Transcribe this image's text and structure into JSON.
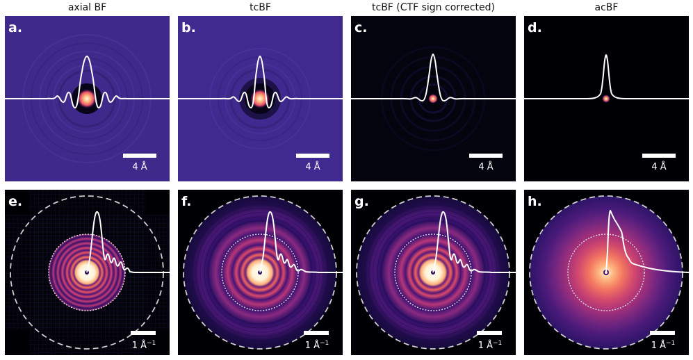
{
  "columns": [
    {
      "title": "axial BF"
    },
    {
      "title": "tcBF"
    },
    {
      "title": "tcBF (CTF sign corrected)"
    },
    {
      "title": "acBF"
    }
  ],
  "panels": {
    "a": {
      "letter": "a.",
      "scale_text": "4 Å",
      "background": "#3f2a8c"
    },
    "b": {
      "letter": "b.",
      "scale_text": "4 Å",
      "background": "#402a90"
    },
    "c": {
      "letter": "c.",
      "scale_text": "4 Å",
      "background": "#04040e"
    },
    "d": {
      "letter": "d.",
      "scale_text": "4 Å",
      "background": "#000004"
    },
    "e": {
      "letter": "e.",
      "scale_unit": "1 Å",
      "scale_exp": "−1",
      "background": "#000004"
    },
    "f": {
      "letter": "f.",
      "scale_unit": "1 Å",
      "scale_exp": "−1",
      "background": "#000004"
    },
    "g": {
      "letter": "g.",
      "scale_unit": "1 Å",
      "scale_exp": "−1",
      "background": "#000004"
    },
    "h": {
      "letter": "h.",
      "scale_unit": "1 Å",
      "scale_exp": "−1",
      "background": "#000004"
    }
  },
  "colors": {
    "colormap": "magma",
    "profile_line": "#ffffff",
    "dashed_circle": "#cfcfcf"
  }
}
